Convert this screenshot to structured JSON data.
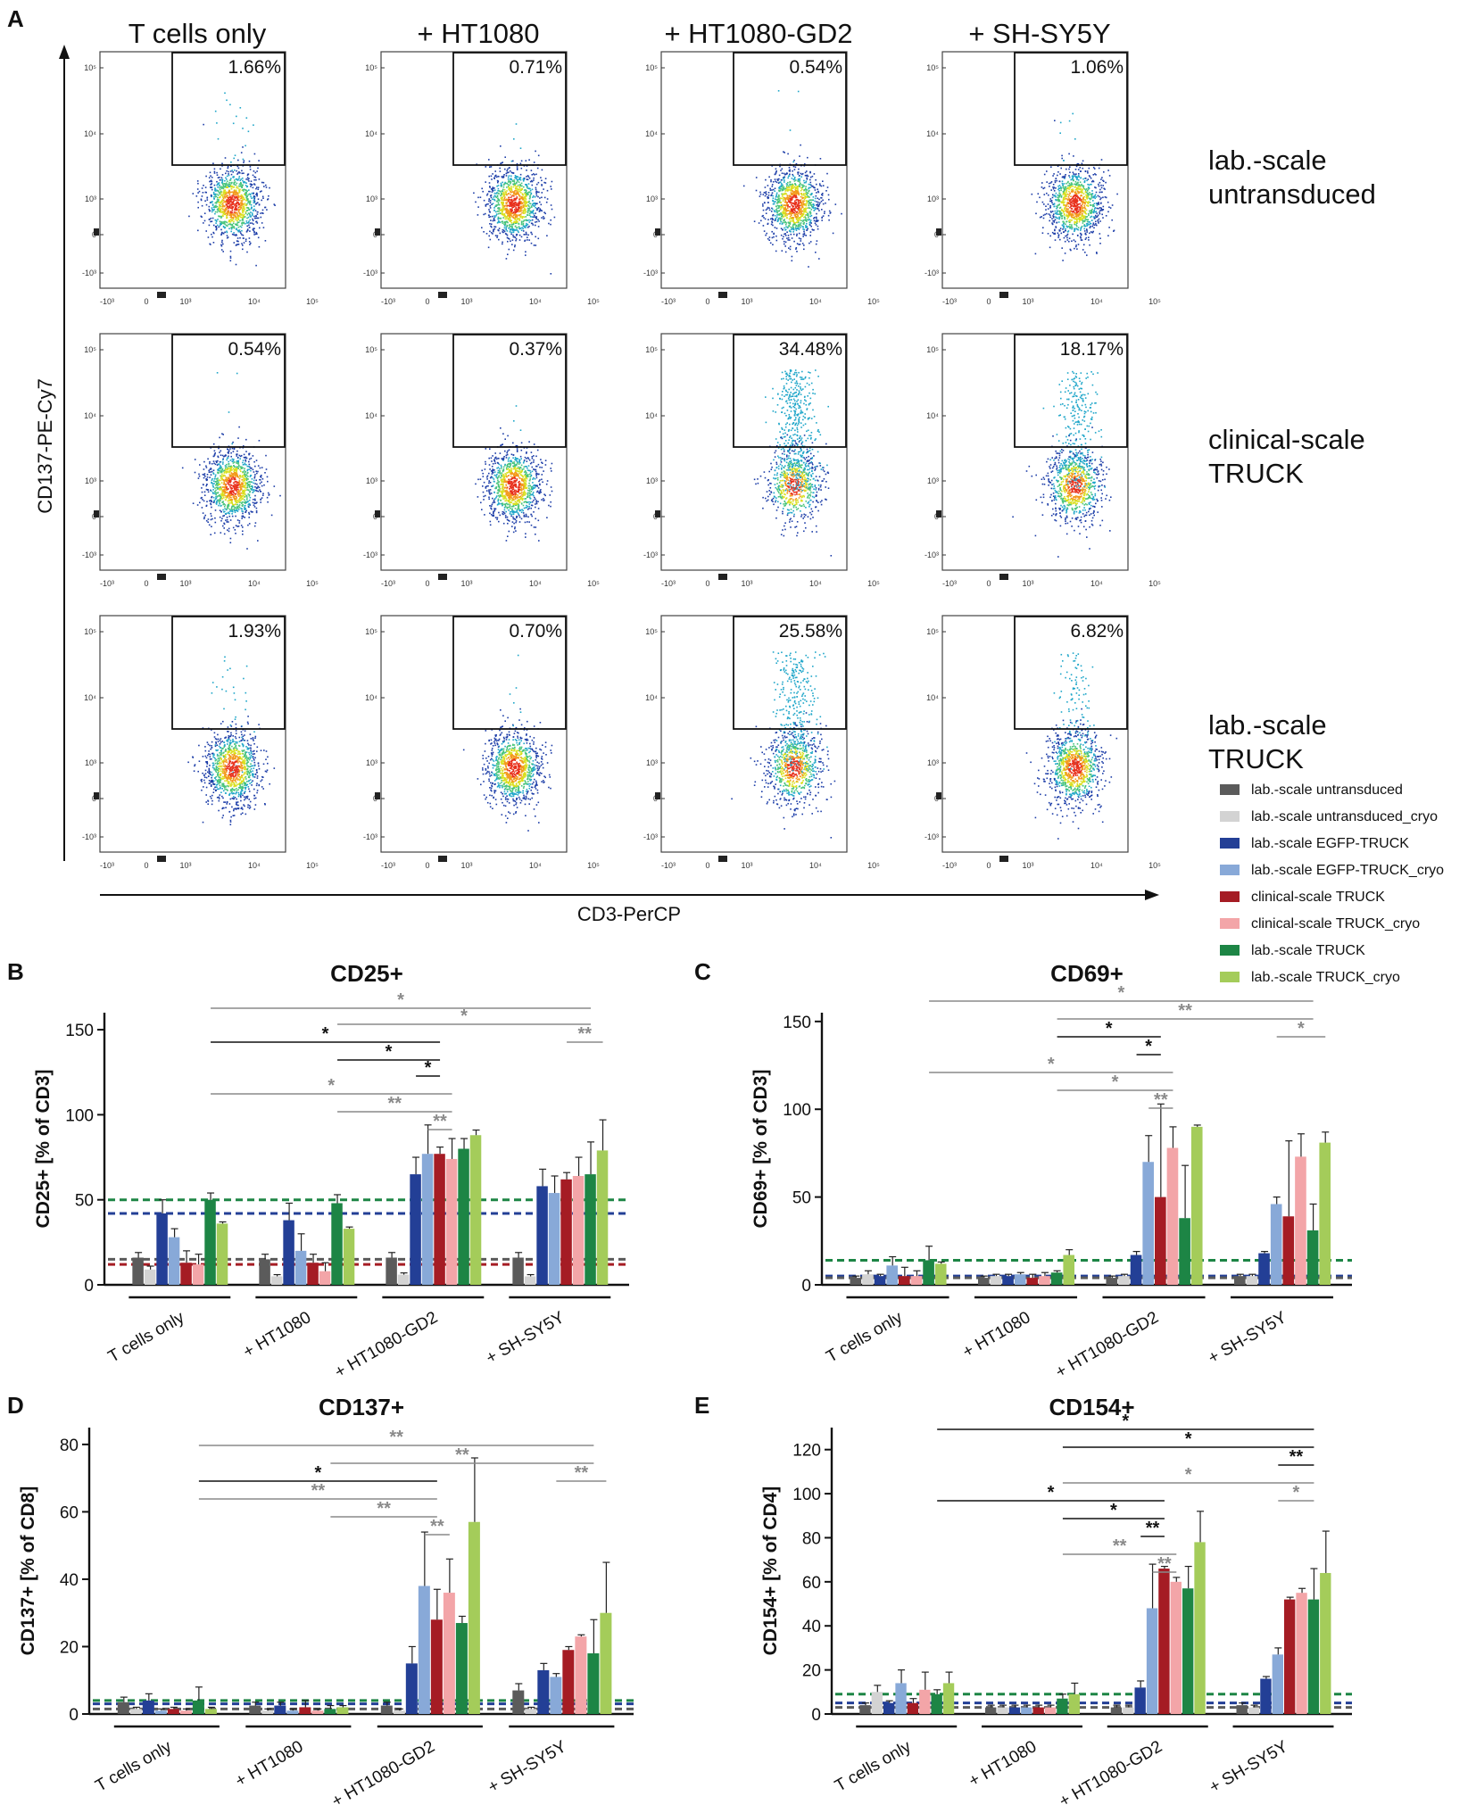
{
  "figure": {
    "panel_letters": [
      "A",
      "B",
      "C",
      "D",
      "E"
    ]
  },
  "chart_data": [
    {
      "panel": "A",
      "type": "scatter",
      "columns": [
        "T cells only",
        "+ HT1080",
        "+ HT1080-GD2",
        "+ SH-SY5Y"
      ],
      "rows": [
        "lab.-scale untransduced",
        "clinical-scale TRUCK",
        "lab.-scale TRUCK"
      ],
      "gate_percentages": [
        [
          "1.66%",
          "0.71%",
          "0.54%",
          "1.06%"
        ],
        [
          "0.54%",
          "0.37%",
          "34.48%",
          "18.17%"
        ],
        [
          "1.93%",
          "0.70%",
          "25.58%",
          "6.82%"
        ]
      ],
      "gate_fraction_values": [
        [
          1.66,
          0.71,
          0.54,
          1.06
        ],
        [
          0.54,
          0.37,
          34.48,
          18.17
        ],
        [
          1.93,
          0.7,
          25.58,
          6.82
        ]
      ],
      "ylabel": "CD137-PE-Cy7",
      "xlabel": "CD3-PerCP",
      "x_ticks": [
        "-10³",
        "0",
        "10³",
        "10⁴",
        "10⁵"
      ],
      "y_ticks": [
        "10⁵",
        "10⁴",
        "10³",
        "0",
        "-10³"
      ]
    },
    {
      "panel": "B",
      "type": "bar",
      "title": "CD25+",
      "ylabel": "CD25+ [% of CD3]",
      "ylim": [
        0,
        160
      ],
      "yticks": [
        0,
        50,
        100,
        150
      ],
      "categories": [
        "T cells only",
        "+ HT1080",
        "+ HT1080-GD2",
        "+ SH-SY5Y"
      ],
      "series": [
        {
          "name": "lab.-scale untransduced",
          "values": [
            16,
            15,
            16,
            16
          ],
          "errors": [
            3,
            3,
            3,
            3
          ]
        },
        {
          "name": "lab.-scale untransduced_cryo",
          "values": [
            9,
            5,
            6,
            5
          ],
          "errors": [
            2,
            1,
            1,
            1
          ]
        },
        {
          "name": "lab.-scale EGFP-TRUCK",
          "values": [
            42,
            38,
            65,
            58
          ],
          "errors": [
            8,
            10,
            10,
            10
          ]
        },
        {
          "name": "lab.-scale EGFP-TRUCK_cryo",
          "values": [
            28,
            20,
            77,
            54
          ],
          "errors": [
            5,
            10,
            17,
            10
          ]
        },
        {
          "name": "clinical-scale TRUCK",
          "values": [
            13,
            13,
            77,
            62
          ],
          "errors": [
            7,
            5,
            4,
            4
          ]
        },
        {
          "name": "clinical-scale TRUCK_cryo",
          "values": [
            12,
            8,
            74,
            64
          ],
          "errors": [
            6,
            5,
            12,
            11
          ]
        },
        {
          "name": "lab.-scale TRUCK",
          "values": [
            50,
            48,
            80,
            65
          ],
          "errors": [
            4,
            5,
            6,
            19
          ]
        },
        {
          "name": "lab.-scale TRUCK_cryo",
          "values": [
            36,
            33,
            88,
            79
          ],
          "errors": [
            1,
            1,
            3,
            18
          ]
        }
      ],
      "reference_lines": [
        50,
        42,
        15,
        12
      ],
      "significance": [
        "*",
        "*",
        "**",
        "*",
        "*",
        "*",
        "*",
        "**",
        "**"
      ]
    },
    {
      "panel": "C",
      "type": "bar",
      "title": "CD69+",
      "ylabel": "CD69+ [% of CD3]",
      "ylim": [
        0,
        155
      ],
      "yticks": [
        0,
        50,
        100,
        150
      ],
      "categories": [
        "T cells only",
        "+ HT1080",
        "+ HT1080-GD2",
        "+ SH-SY5Y"
      ],
      "series": [
        {
          "name": "lab.-scale untransduced",
          "values": [
            4,
            4,
            4,
            5
          ],
          "errors": [
            1,
            1,
            1,
            1
          ]
        },
        {
          "name": "lab.-scale untransduced_cryo",
          "values": [
            6,
            5,
            5,
            5
          ],
          "errors": [
            2,
            1,
            1,
            1
          ]
        },
        {
          "name": "lab.-scale EGFP-TRUCK",
          "values": [
            5,
            5,
            17,
            18
          ],
          "errors": [
            1,
            1,
            2,
            1
          ]
        },
        {
          "name": "lab.-scale EGFP-TRUCK_cryo",
          "values": [
            11,
            6,
            70,
            46
          ],
          "errors": [
            5,
            1,
            15,
            4
          ]
        },
        {
          "name": "clinical-scale TRUCK",
          "values": [
            5,
            4,
            50,
            39
          ],
          "errors": [
            5,
            2,
            53,
            43
          ]
        },
        {
          "name": "clinical-scale TRUCK_cryo",
          "values": [
            5,
            5,
            78,
            73
          ],
          "errors": [
            3,
            2,
            12,
            13
          ]
        },
        {
          "name": "lab.-scale TRUCK",
          "values": [
            14,
            7,
            38,
            31
          ],
          "errors": [
            8,
            1,
            30,
            15
          ]
        },
        {
          "name": "lab.-scale TRUCK_cryo",
          "values": [
            12,
            17,
            90,
            81
          ],
          "errors": [
            1,
            3,
            1,
            6
          ]
        }
      ],
      "reference_lines": [
        14,
        5,
        4
      ],
      "significance": [
        "*",
        "**",
        "*",
        "*",
        "*",
        "*",
        "**",
        "*"
      ]
    },
    {
      "panel": "D",
      "type": "bar",
      "title": "CD137+",
      "ylabel": "CD137+ [% of CD8]",
      "ylim": [
        0,
        85
      ],
      "yticks": [
        0,
        20,
        40,
        60,
        80
      ],
      "categories": [
        "T cells only",
        "+ HT1080",
        "+ HT1080-GD2",
        "+ SH-SY5Y"
      ],
      "series": [
        {
          "name": "lab.-scale untransduced",
          "values": [
            3.5,
            2.5,
            2.5,
            7
          ],
          "errors": [
            1.5,
            1,
            1,
            2
          ]
        },
        {
          "name": "lab.-scale untransduced_cryo",
          "values": [
            1.5,
            1,
            1,
            1.5
          ],
          "errors": [
            0.5,
            0.5,
            0.5,
            0.5
          ]
        },
        {
          "name": "lab.-scale EGFP-TRUCK",
          "values": [
            4,
            2.5,
            15,
            13
          ],
          "errors": [
            2,
            1,
            5,
            2
          ]
        },
        {
          "name": "lab.-scale EGFP-TRUCK_cryo",
          "values": [
            1,
            1,
            38,
            11
          ],
          "errors": [
            0.5,
            0.5,
            16,
            1
          ]
        },
        {
          "name": "clinical-scale TRUCK",
          "values": [
            1.5,
            2,
            28,
            19
          ],
          "errors": [
            0.5,
            2,
            9,
            1
          ]
        },
        {
          "name": "clinical-scale TRUCK_cryo",
          "values": [
            1,
            1,
            36,
            23
          ],
          "errors": [
            0.5,
            0.5,
            10,
            0.5
          ]
        },
        {
          "name": "lab.-scale TRUCK",
          "values": [
            4,
            1.5,
            27,
            18
          ],
          "errors": [
            4,
            1,
            2,
            10
          ]
        },
        {
          "name": "lab.-scale TRUCK_cryo",
          "values": [
            1.5,
            2,
            57,
            30
          ],
          "errors": [
            0.5,
            0.5,
            19,
            15
          ]
        }
      ],
      "reference_lines": [
        4,
        3,
        1.5
      ],
      "significance": [
        "**",
        "**",
        "*",
        "**",
        "**",
        "**",
        "**"
      ]
    },
    {
      "panel": "E",
      "type": "bar",
      "title": "CD154+",
      "ylabel": "CD154+ [% of CD4]",
      "ylim": [
        0,
        130
      ],
      "yticks": [
        0,
        20,
        40,
        60,
        80,
        100,
        120
      ],
      "categories": [
        "T cells only",
        "+ HT1080",
        "+ HT1080-GD2",
        "+ SH-SY5Y"
      ],
      "series": [
        {
          "name": "lab.-scale untransduced",
          "values": [
            4,
            3,
            3,
            4
          ],
          "errors": [
            1,
            1,
            1,
            1
          ]
        },
        {
          "name": "lab.-scale untransduced_cryo",
          "values": [
            10,
            3,
            3,
            3
          ],
          "errors": [
            3,
            1,
            1,
            1
          ]
        },
        {
          "name": "lab.-scale EGFP-TRUCK",
          "values": [
            5,
            3,
            12,
            16
          ],
          "errors": [
            1,
            1,
            3,
            1
          ]
        },
        {
          "name": "lab.-scale EGFP-TRUCK_cryo",
          "values": [
            14,
            3,
            48,
            27
          ],
          "errors": [
            6,
            1,
            20,
            3
          ]
        },
        {
          "name": "clinical-scale TRUCK",
          "values": [
            5,
            3,
            66,
            52
          ],
          "errors": [
            2,
            1,
            1,
            1
          ]
        },
        {
          "name": "clinical-scale TRUCK_cryo",
          "values": [
            11,
            3,
            60,
            55
          ],
          "errors": [
            8,
            1,
            2,
            2
          ]
        },
        {
          "name": "lab.-scale TRUCK",
          "values": [
            9,
            7,
            57,
            52
          ],
          "errors": [
            2,
            2,
            10,
            14
          ]
        },
        {
          "name": "lab.-scale TRUCK_cryo",
          "values": [
            14,
            9,
            78,
            64
          ],
          "errors": [
            5,
            5,
            14,
            19
          ]
        }
      ],
      "reference_lines": [
        9,
        5,
        3
      ],
      "significance": [
        "*",
        "*",
        "**",
        "*",
        "*",
        "*",
        "**",
        "**",
        "*",
        "**"
      ]
    }
  ],
  "legend": [
    {
      "label": "lab.-scale untransduced",
      "color": "#5b5b5b"
    },
    {
      "label": "lab.-scale untransduced_cryo",
      "color": "#d3d3d3"
    },
    {
      "label": "lab.-scale EGFP-TRUCK",
      "color": "#233f96"
    },
    {
      "label": "lab.-scale EGFP-TRUCK_cryo",
      "color": "#88a9d8"
    },
    {
      "label": "clinical-scale TRUCK",
      "color": "#a51c24"
    },
    {
      "label": "clinical-scale TRUCK_cryo",
      "color": "#f3a5a8"
    },
    {
      "label": "lab.-scale TRUCK",
      "color": "#1d8545"
    },
    {
      "label": "lab.-scale TRUCK_cryo",
      "color": "#a4cc5a"
    }
  ]
}
